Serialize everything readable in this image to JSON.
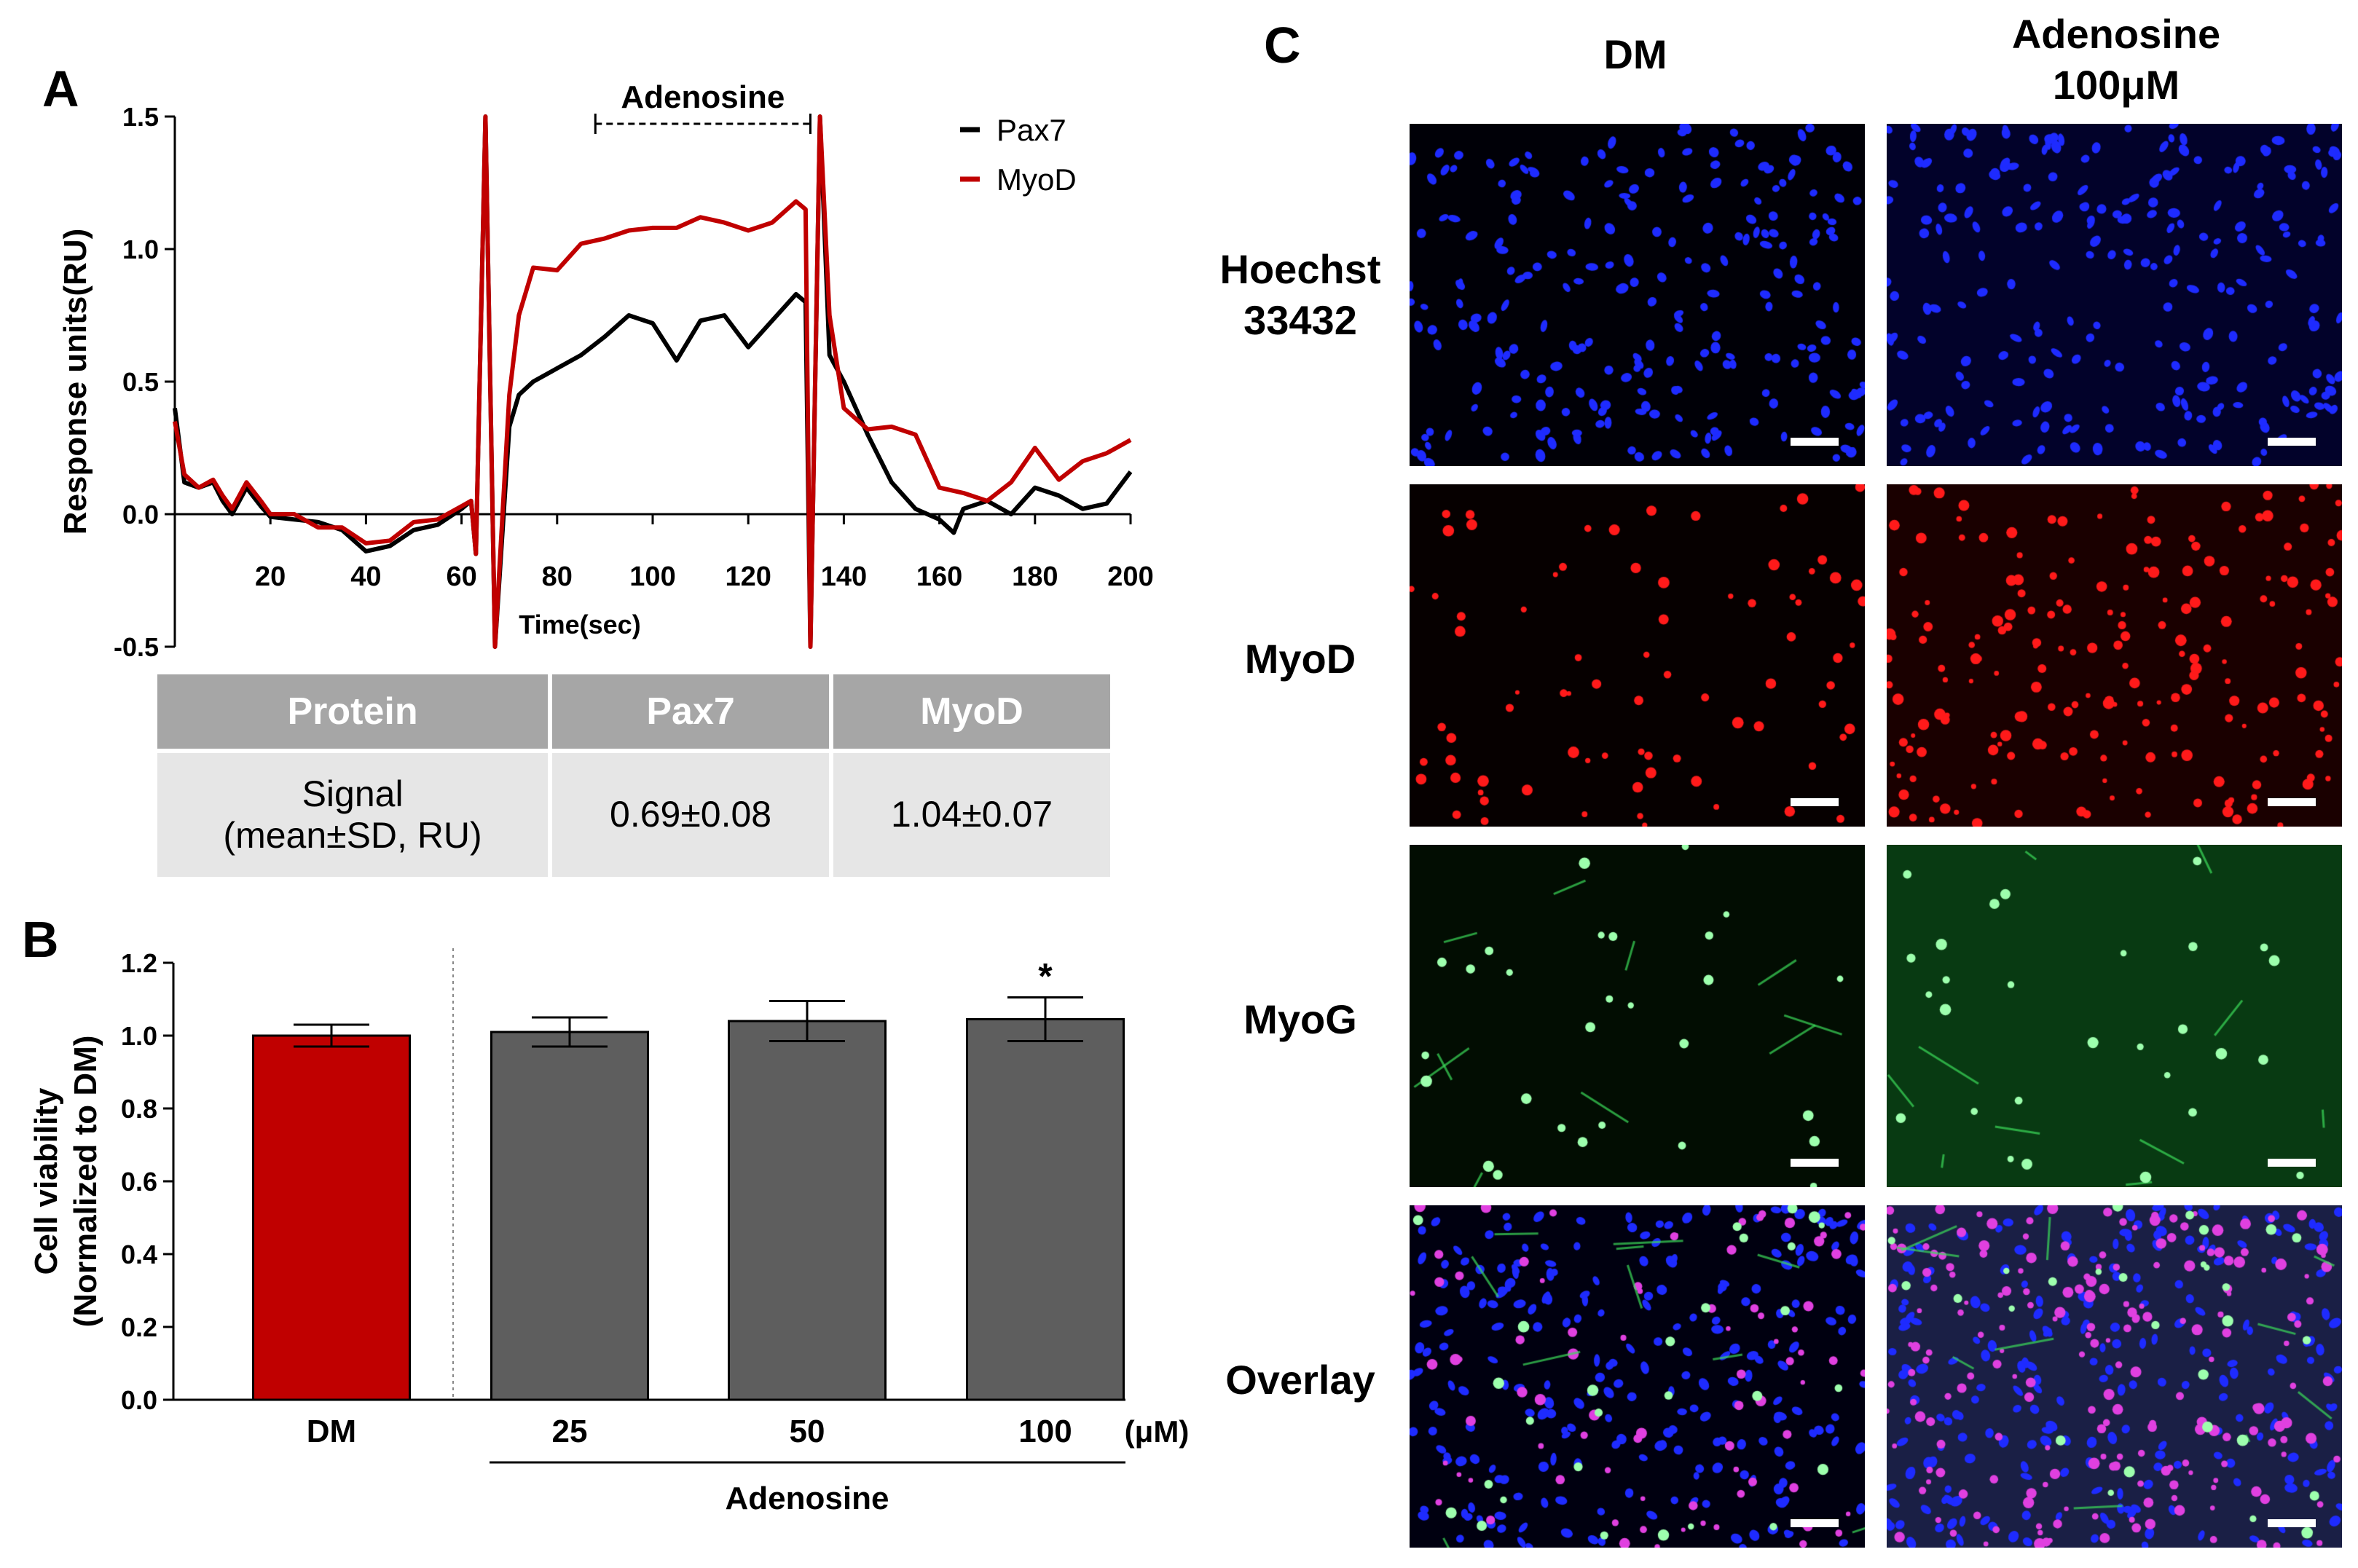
{
  "panels": {
    "A": {
      "letter": "A",
      "treatment_label": "Adenosine",
      "chart_data": {
        "type": "line",
        "xlabel": "Time(sec)",
        "ylabel": "Response units(RU)",
        "xlim": [
          0,
          200
        ],
        "ylim": [
          -0.5,
          1.5
        ],
        "x_ticks": [
          20,
          40,
          60,
          80,
          100,
          120,
          140,
          160,
          180,
          200
        ],
        "y_ticks": [
          "-0.5",
          "0.0",
          "0.5",
          "1.0",
          "1.5"
        ],
        "legend_position": "top-right",
        "annotation": {
          "text": "Adenosine",
          "x_start": 88,
          "x_end": 133
        },
        "series": [
          {
            "name": "Pax7",
            "color": "#000000",
            "x": [
              0,
              2,
              5,
              8,
              10,
              12,
              15,
              18,
              20,
              25,
              30,
              35,
              40,
              45,
              50,
              55,
              60,
              62,
              63,
              65,
              67,
              70,
              72,
              75,
              80,
              85,
              90,
              95,
              100,
              105,
              110,
              115,
              120,
              125,
              130,
              132,
              133,
              135,
              137,
              140,
              145,
              150,
              155,
              160,
              163,
              165,
              170,
              175,
              180,
              185,
              190,
              195,
              200
            ],
            "y": [
              0.4,
              0.12,
              0.1,
              0.12,
              0.05,
              0.0,
              0.1,
              0.03,
              -0.01,
              -0.02,
              -0.03,
              -0.06,
              -0.14,
              -0.12,
              -0.06,
              -0.04,
              0.02,
              0.05,
              -0.15,
              1.5,
              -0.5,
              0.33,
              0.45,
              0.5,
              0.55,
              0.6,
              0.67,
              0.75,
              0.72,
              0.58,
              0.73,
              0.75,
              0.63,
              0.73,
              0.83,
              0.8,
              -0.5,
              1.5,
              0.6,
              0.5,
              0.3,
              0.12,
              0.02,
              -0.02,
              -0.07,
              0.02,
              0.05,
              0.0,
              0.1,
              0.07,
              0.02,
              0.04,
              0.16
            ]
          },
          {
            "name": "MyoD",
            "color": "#c00000",
            "x": [
              0,
              2,
              5,
              8,
              10,
              12,
              15,
              18,
              20,
              25,
              30,
              35,
              40,
              45,
              50,
              55,
              60,
              62,
              63,
              65,
              67,
              70,
              72,
              75,
              80,
              85,
              90,
              95,
              100,
              105,
              110,
              115,
              120,
              125,
              130,
              132,
              133,
              135,
              137,
              140,
              145,
              150,
              155,
              160,
              165,
              170,
              175,
              180,
              185,
              190,
              195,
              200
            ],
            "y": [
              0.35,
              0.15,
              0.1,
              0.13,
              0.07,
              0.02,
              0.12,
              0.05,
              0.0,
              0.0,
              -0.05,
              -0.05,
              -0.11,
              -0.1,
              -0.03,
              -0.02,
              0.03,
              0.05,
              -0.15,
              1.5,
              -0.5,
              0.45,
              0.75,
              0.93,
              0.92,
              1.02,
              1.04,
              1.07,
              1.08,
              1.08,
              1.12,
              1.1,
              1.07,
              1.1,
              1.18,
              1.15,
              -0.5,
              1.5,
              0.75,
              0.4,
              0.32,
              0.33,
              0.3,
              0.1,
              0.08,
              0.05,
              0.12,
              0.25,
              0.13,
              0.2,
              0.23,
              0.28
            ]
          }
        ]
      },
      "table": {
        "headers": [
          "Protein",
          "Pax7",
          "MyoD"
        ],
        "row_label_line1": "Signal",
        "row_label_line2": "(mean±SD, RU)",
        "values": [
          "0.69±0.08",
          "1.04±0.07"
        ]
      }
    },
    "B": {
      "letter": "B",
      "chart_data": {
        "type": "bar",
        "ylabel_line1": "Cell viability",
        "ylabel_line2": "(Normalized to DM)",
        "ylim": [
          0,
          1.2
        ],
        "y_ticks": [
          "0.0",
          "0.2",
          "0.4",
          "0.6",
          "0.8",
          "1.0",
          "1.2"
        ],
        "categories": [
          "DM",
          "25",
          "50",
          "100"
        ],
        "values": [
          1.0,
          1.01,
          1.04,
          1.045
        ],
        "errors": [
          0.03,
          0.04,
          0.055,
          0.06
        ],
        "colors": [
          "#c00000",
          "#5e5e5e",
          "#5e5e5e",
          "#5e5e5e"
        ],
        "significance": [
          "",
          "",
          "",
          "*"
        ],
        "unit_label": "(μM)",
        "group_label": "Adenosine"
      }
    },
    "C": {
      "letter": "C",
      "columns": [
        "DM",
        "Adenosine\n100μM"
      ],
      "rows": [
        "Hoechst\n33432",
        "MyoD",
        "MyoG",
        "Overlay"
      ]
    }
  }
}
